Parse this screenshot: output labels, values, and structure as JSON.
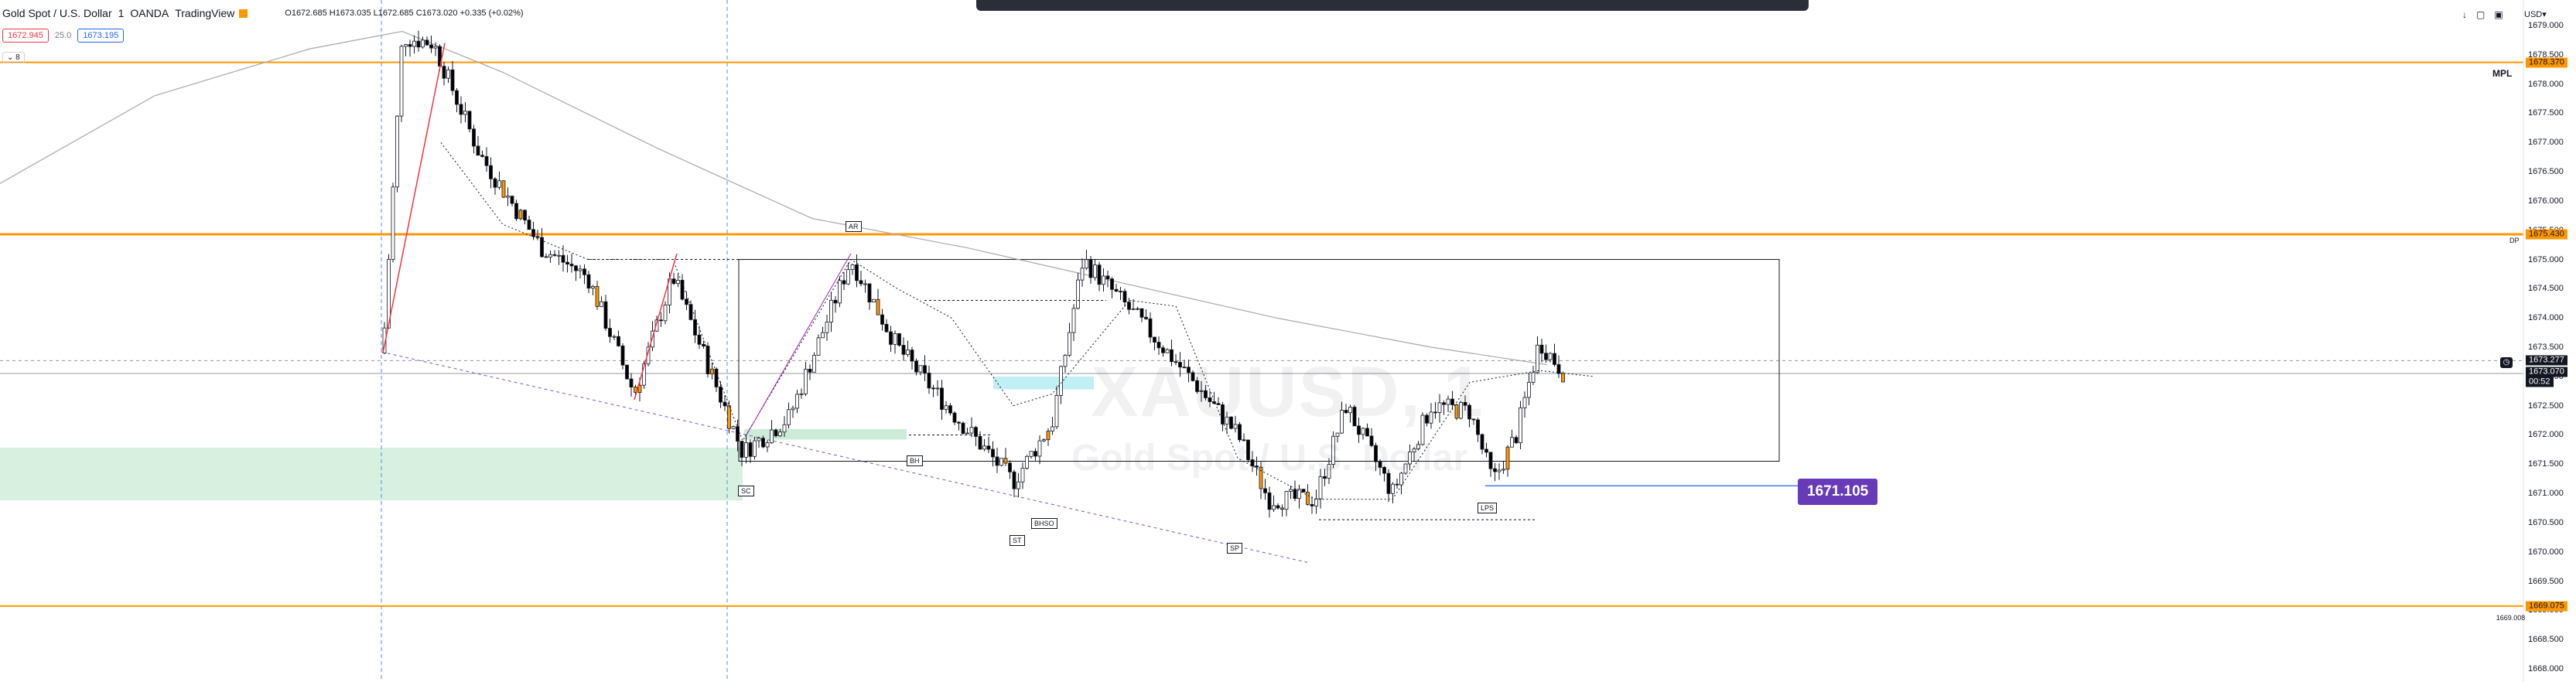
{
  "header": {
    "symbol": "Gold Spot / U.S. Dollar",
    "interval": "1",
    "broker": "OANDA",
    "platform": "TradingView",
    "ohlc": "O1672.685 H1673.035 L1672.685 C1673.020 +0.335 (+0.02%)"
  },
  "quote": {
    "sell": "1672.945",
    "spread": "25.0",
    "buy": "1673.195"
  },
  "collapse_label": "8",
  "currency": "USD",
  "colors": {
    "up": "#ffffff",
    "down": "#000000",
    "accent_candle": "#ff9800",
    "level": "#ff9800",
    "callout": "#673ab7",
    "zone_green": "#b7e4c7",
    "zone_cyan": "#a5e9f1"
  },
  "price_axis": {
    "ticks": [
      "1679.000",
      "1678.500",
      "1678.000",
      "1677.500",
      "1677.000",
      "1676.500",
      "1676.000",
      "1675.500",
      "1675.000",
      "1674.500",
      "1674.000",
      "1673.500",
      "1673.000",
      "1672.500",
      "1672.000",
      "1671.500",
      "1671.000",
      "1670.500",
      "1670.000",
      "1669.500",
      "1669.000",
      "1668.500",
      "1668.000"
    ],
    "range": [
      1667.9,
      1679.1
    ]
  },
  "levels": [
    {
      "name": "upper-level",
      "price": 1678.37,
      "tag": "1678.370"
    },
    {
      "name": "mid-level",
      "price": 1675.43,
      "tag": "1675.430"
    },
    {
      "name": "lower-level",
      "price": 1669.075,
      "tag": "1669.075"
    }
  ],
  "last_price": {
    "price_a": "1673.277",
    "price_b": "1673.070",
    "countdown": "00:52"
  },
  "mpl_label": "MPL",
  "dp_label": "DP",
  "low_label": "1669.008",
  "callout_price": "1671.105",
  "annotations": [
    "AR",
    "SC",
    "BH",
    "ST",
    "BHSO",
    "SP",
    "LPS"
  ],
  "watermark": {
    "line1": "XAUUSD, 1",
    "line2": "Gold Spot / U.S. Dollar"
  }
}
